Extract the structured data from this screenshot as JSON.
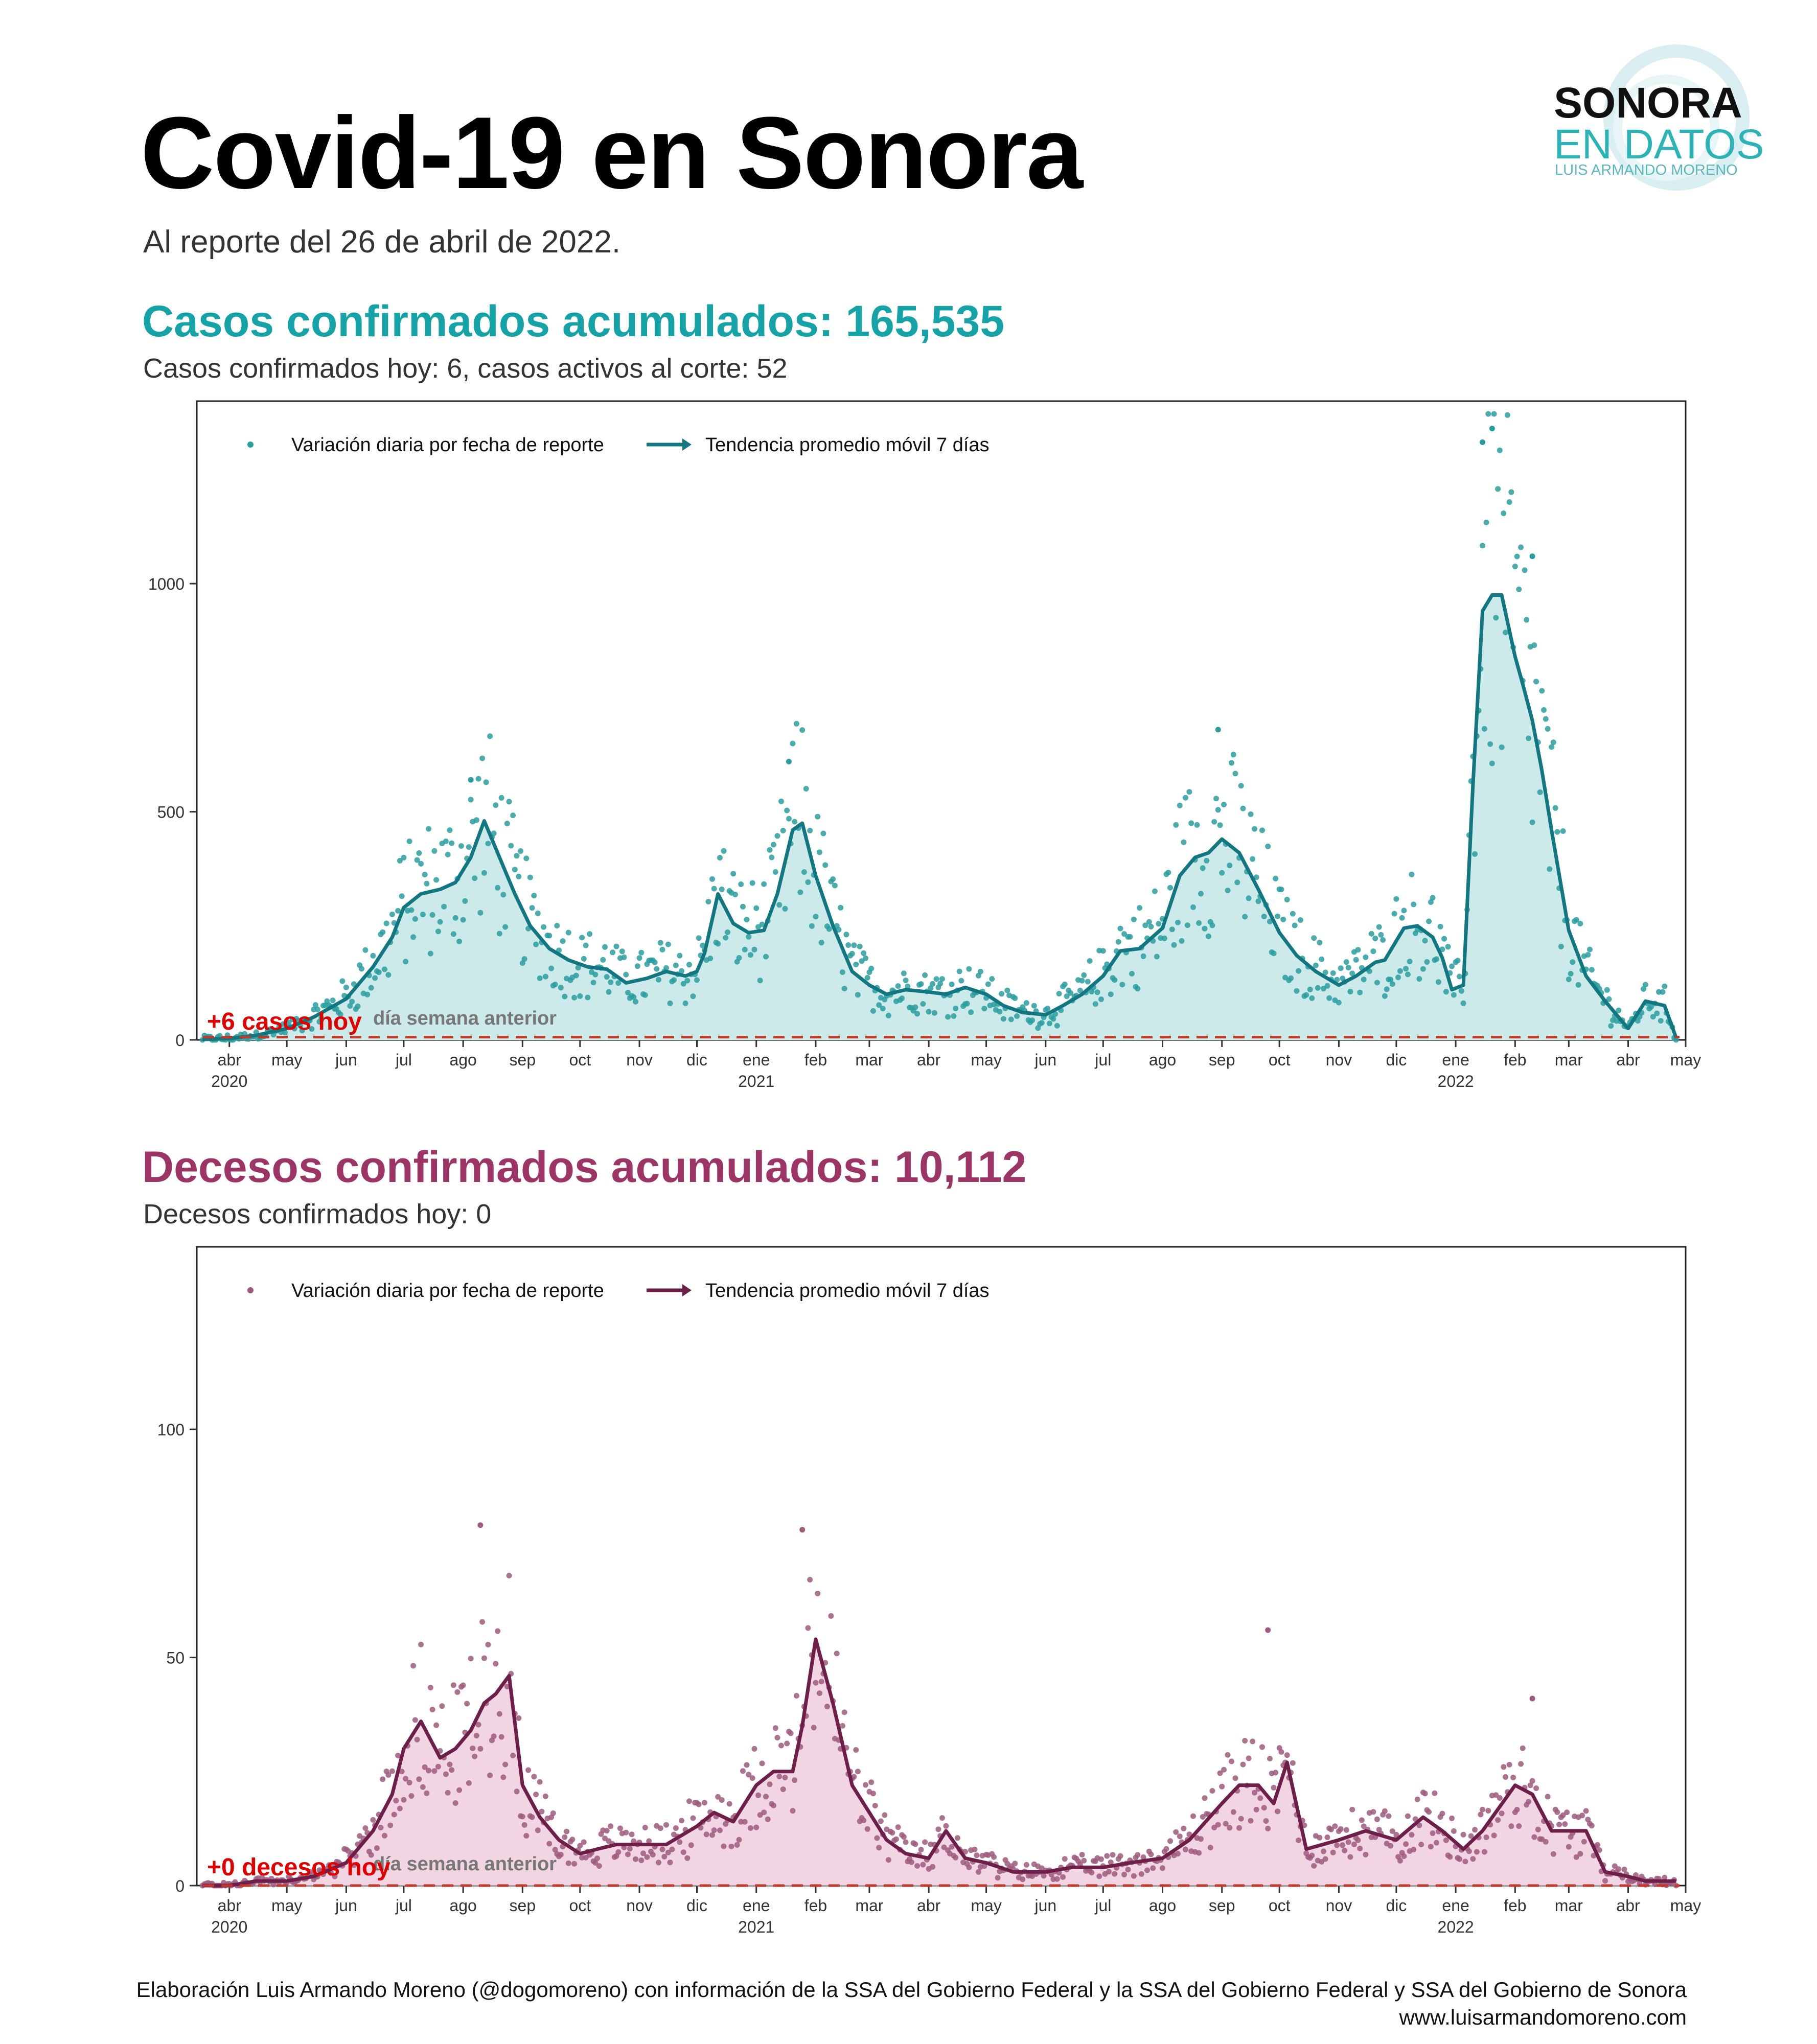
{
  "header": {
    "title": "Covid-19  en Sonora",
    "subtitle": "Al reporte del 26 de abril de 2022.",
    "logo": {
      "line1": "SONORA",
      "line2": "EN DATOS",
      "line3": "LUIS ARMANDO MORENO"
    }
  },
  "cases": {
    "title": "Casos confirmados acumulados: 165,535",
    "subtitle": "Casos confirmados hoy: 6, casos activos al corte: 52"
  },
  "deaths": {
    "title": "Decesos confirmados acumulados: 10,112",
    "subtitle": "Decesos confirmados hoy: 0"
  },
  "footer": {
    "line1": "Elaboración Luis Armando Moreno (@dogomoreno) con información de la SSA del Gobierno Federal y la SSA del Gobierno Federal y SSA del Gobierno de Sonora",
    "line2": "www.luisarmandomoreno.com"
  },
  "colors": {
    "cases_line": "#127780",
    "cases_point": "#2a9d9f",
    "cases_fill": "#cdeaea",
    "deaths_line": "#6e1f49",
    "deaths_point": "#9e5a7e",
    "deaths_fill": "#f1d5e3",
    "today_marker": "#e00000",
    "reference_line": "#c0392b",
    "cases_title": "#16a3a8",
    "deaths_title": "#9c3465"
  },
  "chart_data": [
    {
      "type": "line",
      "name": "cases",
      "date_range": [
        "2020-03-15",
        "2022-05-01"
      ],
      "ylim": [
        0,
        1400
      ],
      "y_ticks": [
        0,
        500,
        1000
      ],
      "x_ticks": [
        {
          "date": "2020-04-01",
          "label": "abr",
          "year": "2020"
        },
        {
          "date": "2020-05-01",
          "label": "may"
        },
        {
          "date": "2020-06-01",
          "label": "jun"
        },
        {
          "date": "2020-07-01",
          "label": "jul"
        },
        {
          "date": "2020-08-01",
          "label": "ago"
        },
        {
          "date": "2020-09-01",
          "label": "sep"
        },
        {
          "date": "2020-10-01",
          "label": "oct"
        },
        {
          "date": "2020-11-01",
          "label": "nov"
        },
        {
          "date": "2020-12-01",
          "label": "dic"
        },
        {
          "date": "2021-01-01",
          "label": "ene",
          "year": "2021"
        },
        {
          "date": "2021-02-01",
          "label": "feb"
        },
        {
          "date": "2021-03-01",
          "label": "mar"
        },
        {
          "date": "2021-04-01",
          "label": "abr"
        },
        {
          "date": "2021-05-01",
          "label": "may"
        },
        {
          "date": "2021-06-01",
          "label": "jun"
        },
        {
          "date": "2021-07-01",
          "label": "jul"
        },
        {
          "date": "2021-08-01",
          "label": "ago"
        },
        {
          "date": "2021-09-01",
          "label": "sep"
        },
        {
          "date": "2021-10-01",
          "label": "oct"
        },
        {
          "date": "2021-11-01",
          "label": "nov"
        },
        {
          "date": "2021-12-01",
          "label": "dic"
        },
        {
          "date": "2022-01-01",
          "label": "ene",
          "year": "2022"
        },
        {
          "date": "2022-02-01",
          "label": "feb"
        },
        {
          "date": "2022-03-01",
          "label": "mar"
        },
        {
          "date": "2022-04-01",
          "label": "abr"
        },
        {
          "date": "2022-05-01",
          "label": "may"
        }
      ],
      "legend": [
        "Variación diaria por fecha de reporte",
        "Tendencia promedio móvil 7 días"
      ],
      "annotation_today": "+6 casos hoy",
      "annotation_reference": "día semana anterior",
      "reference_value": 6,
      "series": [
        {
          "name": "Tendencia promedio móvil 7 días",
          "x": [
            "2020-03-18",
            "2020-04-01",
            "2020-04-15",
            "2020-05-01",
            "2020-05-15",
            "2020-06-01",
            "2020-06-15",
            "2020-06-25",
            "2020-07-01",
            "2020-07-10",
            "2020-07-20",
            "2020-07-28",
            "2020-08-05",
            "2020-08-12",
            "2020-08-20",
            "2020-08-28",
            "2020-09-05",
            "2020-09-15",
            "2020-09-25",
            "2020-10-05",
            "2020-10-15",
            "2020-10-25",
            "2020-11-05",
            "2020-11-15",
            "2020-11-25",
            "2020-12-01",
            "2020-12-05",
            "2020-12-12",
            "2020-12-20",
            "2020-12-28",
            "2021-01-05",
            "2021-01-12",
            "2021-01-20",
            "2021-01-25",
            "2021-02-01",
            "2021-02-10",
            "2021-02-20",
            "2021-03-01",
            "2021-03-10",
            "2021-03-20",
            "2021-04-01",
            "2021-04-10",
            "2021-04-20",
            "2021-05-01",
            "2021-05-10",
            "2021-05-20",
            "2021-06-01",
            "2021-06-10",
            "2021-06-20",
            "2021-07-01",
            "2021-07-10",
            "2021-07-20",
            "2021-08-01",
            "2021-08-10",
            "2021-08-18",
            "2021-08-25",
            "2021-09-01",
            "2021-09-10",
            "2021-09-20",
            "2021-10-01",
            "2021-10-10",
            "2021-10-20",
            "2021-11-01",
            "2021-11-10",
            "2021-11-20",
            "2021-11-25",
            "2021-12-05",
            "2021-12-12",
            "2021-12-20",
            "2021-12-25",
            "2021-12-30",
            "2022-01-05",
            "2022-01-10",
            "2022-01-15",
            "2022-01-20",
            "2022-01-25",
            "2022-02-01",
            "2022-02-05",
            "2022-02-10",
            "2022-02-15",
            "2022-02-20",
            "2022-03-01",
            "2022-03-10",
            "2022-03-20",
            "2022-04-01",
            "2022-04-10",
            "2022-04-20",
            "2022-04-26"
          ],
          "y": [
            1,
            3,
            10,
            25,
            50,
            90,
            160,
            225,
            290,
            320,
            330,
            345,
            400,
            480,
            400,
            320,
            250,
            200,
            175,
            160,
            155,
            125,
            135,
            150,
            140,
            150,
            190,
            320,
            255,
            235,
            240,
            320,
            460,
            475,
            360,
            250,
            150,
            120,
            100,
            110,
            105,
            100,
            115,
            100,
            75,
            60,
            55,
            75,
            100,
            140,
            195,
            200,
            245,
            360,
            400,
            410,
            440,
            410,
            330,
            235,
            185,
            150,
            120,
            140,
            170,
            175,
            245,
            250,
            225,
            180,
            110,
            120,
            560,
            940,
            975,
            975,
            840,
            780,
            700,
            590,
            460,
            240,
            140,
            85,
            25,
            85,
            75,
            5
          ]
        }
      ],
      "peaks_points": [
        {
          "x": "2020-08-05",
          "y": 570
        },
        {
          "x": "2021-01-18",
          "y": 610
        },
        {
          "x": "2021-08-30",
          "y": 680
        },
        {
          "x": "2022-01-20",
          "y": 1340
        },
        {
          "x": "2022-01-15",
          "y": 1310
        },
        {
          "x": "2022-02-10",
          "y": 1060
        }
      ]
    },
    {
      "type": "line",
      "name": "deaths",
      "date_range": [
        "2020-03-15",
        "2022-05-01"
      ],
      "ylim": [
        0,
        140
      ],
      "y_ticks": [
        0,
        50,
        100
      ],
      "legend": [
        "Variación diaria por fecha de reporte",
        "Tendencia promedio móvil 7 días"
      ],
      "annotation_today": "+0 decesos hoy",
      "annotation_reference": "día semana anterior",
      "reference_value": 0,
      "series": [
        {
          "name": "Tendencia promedio móvil 7 días",
          "x": [
            "2020-03-18",
            "2020-04-01",
            "2020-04-15",
            "2020-05-01",
            "2020-05-15",
            "2020-06-01",
            "2020-06-15",
            "2020-06-25",
            "2020-07-01",
            "2020-07-10",
            "2020-07-20",
            "2020-07-28",
            "2020-08-05",
            "2020-08-12",
            "2020-08-18",
            "2020-08-25",
            "2020-09-01",
            "2020-09-10",
            "2020-09-20",
            "2020-10-01",
            "2020-10-10",
            "2020-10-20",
            "2020-11-01",
            "2020-11-15",
            "2020-12-01",
            "2020-12-10",
            "2020-12-20",
            "2021-01-01",
            "2021-01-10",
            "2021-01-20",
            "2021-01-25",
            "2021-02-01",
            "2021-02-10",
            "2021-02-20",
            "2021-03-01",
            "2021-03-10",
            "2021-03-20",
            "2021-04-01",
            "2021-04-10",
            "2021-04-20",
            "2021-05-01",
            "2021-05-15",
            "2021-06-01",
            "2021-06-15",
            "2021-07-01",
            "2021-07-15",
            "2021-08-01",
            "2021-08-15",
            "2021-09-01",
            "2021-09-10",
            "2021-09-20",
            "2021-09-28",
            "2021-10-05",
            "2021-10-15",
            "2021-11-01",
            "2021-11-15",
            "2021-12-01",
            "2021-12-15",
            "2021-12-25",
            "2022-01-05",
            "2022-01-15",
            "2022-02-01",
            "2022-02-10",
            "2022-02-20",
            "2022-03-01",
            "2022-03-10",
            "2022-03-20",
            "2022-04-01",
            "2022-04-10",
            "2022-04-26"
          ],
          "y": [
            0,
            0,
            1,
            1,
            2,
            5,
            12,
            20,
            30,
            36,
            28,
            30,
            34,
            40,
            42,
            46,
            22,
            15,
            10,
            7,
            8,
            9,
            9,
            9,
            13,
            16,
            14,
            22,
            25,
            25,
            35,
            54,
            40,
            22,
            16,
            10,
            7,
            6,
            12,
            6,
            5,
            3,
            3,
            4,
            4,
            5,
            6,
            10,
            18,
            22,
            22,
            18,
            27,
            8,
            10,
            12,
            10,
            15,
            12,
            8,
            12,
            22,
            20,
            12,
            12,
            12,
            3,
            2,
            1,
            1
          ]
        }
      ],
      "peaks_points": [
        {
          "x": "2020-08-10",
          "y": 79
        },
        {
          "x": "2021-01-25",
          "y": 78
        },
        {
          "x": "2021-09-25",
          "y": 56
        },
        {
          "x": "2022-02-10",
          "y": 41
        }
      ]
    }
  ]
}
